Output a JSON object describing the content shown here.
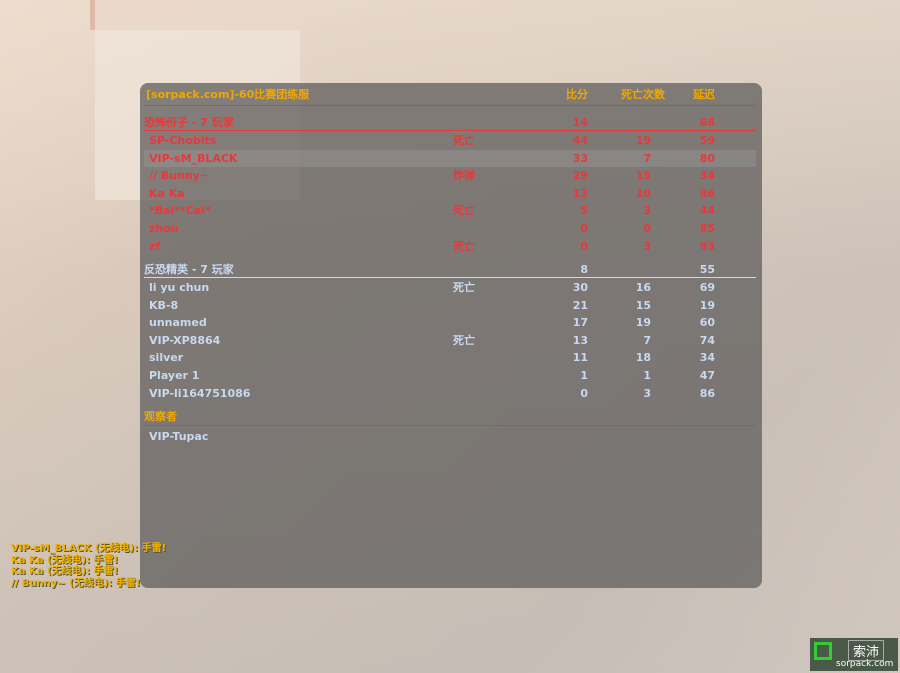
{
  "server_title": "[sorpack.com]-60比赛团练服",
  "columns": {
    "score": "比分",
    "deaths": "死亡次数",
    "ping": "延迟"
  },
  "terrorists": {
    "header": "恐怖份子   -   7 玩家",
    "score": "14",
    "ping": "68",
    "color": "#e8383a",
    "players": [
      {
        "name": "SP-Chobits",
        "status": "死亡",
        "score": "44",
        "deaths": "19",
        "ping": "59"
      },
      {
        "name": "VIP-sM_BLACK",
        "status": "",
        "score": "33",
        "deaths": "7",
        "ping": "80"
      },
      {
        "name": "// Bunny~",
        "status": "炸弹",
        "score": "29",
        "deaths": "15",
        "ping": "34"
      },
      {
        "name": "Ka Ka",
        "status": "",
        "score": "13",
        "deaths": "10",
        "ping": "86"
      },
      {
        "name": "*Bai**Cai*",
        "status": "死亡",
        "score": "5",
        "deaths": "3",
        "ping": "44"
      },
      {
        "name": "zhou",
        "status": "",
        "score": "0",
        "deaths": "0",
        "ping": "85"
      },
      {
        "name": "zf",
        "status": "死亡",
        "score": "0",
        "deaths": "3",
        "ping": "93"
      }
    ]
  },
  "counter_terrorists": {
    "header": "反恐精英   -   7 玩家",
    "score": "8",
    "ping": "55",
    "color": "#c8d8f0",
    "players": [
      {
        "name": "li yu chun",
        "status": "死亡",
        "score": "30",
        "deaths": "16",
        "ping": "69"
      },
      {
        "name": "KB-8",
        "status": "",
        "score": "21",
        "deaths": "15",
        "ping": "19"
      },
      {
        "name": "unnamed",
        "status": "",
        "score": "17",
        "deaths": "19",
        "ping": "60"
      },
      {
        "name": "VIP-XP8864",
        "status": "死亡",
        "score": "13",
        "deaths": "7",
        "ping": "74"
      },
      {
        "name": "silver",
        "status": "",
        "score": "11",
        "deaths": "18",
        "ping": "34"
      },
      {
        "name": "Player 1",
        "status": "",
        "score": "1",
        "deaths": "1",
        "ping": "47"
      },
      {
        "name": "VIP-li164751086",
        "status": "",
        "score": "0",
        "deaths": "3",
        "ping": "86"
      }
    ]
  },
  "spectators": {
    "header": "观察者",
    "players": [
      "VIP-Tupac"
    ]
  },
  "chat": [
    "VIP-sM_BLACK (无线电): 手雷!",
    "Ka Ka (无线电): 手雷!",
    "Ka Ka (无线电): 手雷!",
    "// Bunny~ (无线电): 手雷!"
  ],
  "watermark": {
    "cn": "索沛",
    "url": "sorpack.com"
  }
}
